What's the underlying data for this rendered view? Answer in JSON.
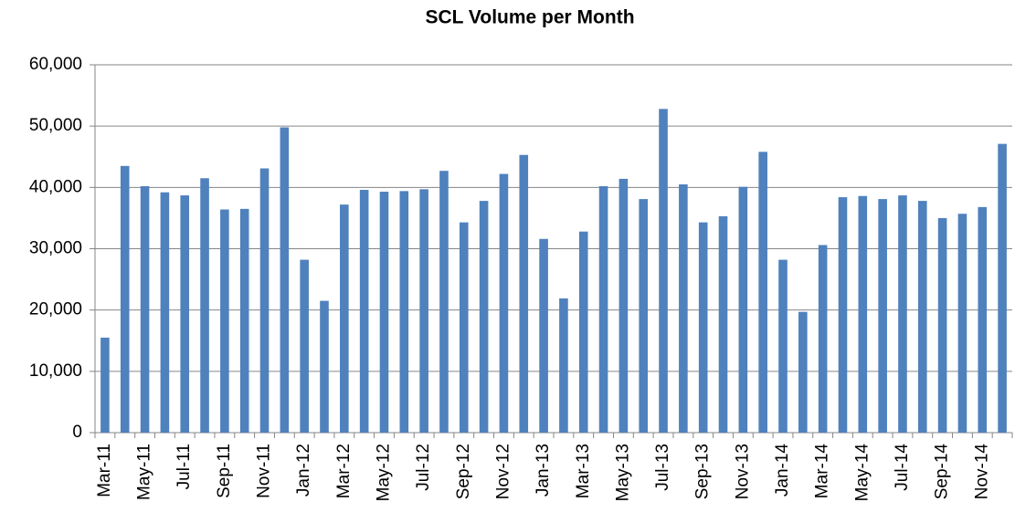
{
  "chart_data": {
    "type": "bar",
    "title": "SCL Volume per Month",
    "categories": [
      "Mar-11",
      null,
      "May-11",
      null,
      "Jul-11",
      null,
      "Sep-11",
      null,
      "Nov-11",
      null,
      "Jan-12",
      null,
      "Mar-12",
      null,
      "May-12",
      null,
      "Jul-12",
      null,
      "Sep-12",
      null,
      "Nov-12",
      null,
      "Jan-13",
      null,
      "Mar-13",
      null,
      "May-13",
      null,
      "Jul-13",
      null,
      "Sep-13",
      null,
      "Nov-13",
      null,
      "Jan-14",
      null,
      "Mar-14",
      null,
      "May-14",
      null,
      "Jul-14",
      null,
      "Sep-14",
      null,
      "Nov-14",
      null
    ],
    "values": [
      15500,
      43500,
      40200,
      39200,
      38700,
      41500,
      36400,
      36500,
      43100,
      49800,
      28200,
      21500,
      37200,
      39600,
      39300,
      39400,
      39700,
      42700,
      34300,
      37800,
      42200,
      45300,
      31600,
      21900,
      32800,
      40200,
      41400,
      38100,
      52800,
      40500,
      34300,
      35300,
      40100,
      45800,
      28200,
      19700,
      30600,
      38400,
      38600,
      38100,
      38700,
      37800,
      35000,
      35700,
      36800,
      47100
    ],
    "color": "#4f81bd",
    "ylim": [
      0,
      60000
    ],
    "yticks": [
      0,
      {
        "value": 10000,
        "label": "10,000"
      },
      {
        "value": 20000,
        "label": "20,000"
      },
      {
        "value": 30000,
        "label": "30,000"
      },
      {
        "value": 40000,
        "label": "40,000"
      },
      {
        "value": 50000,
        "label": "50,000"
      },
      {
        "value": 60000,
        "label": "60,000"
      }
    ],
    "grid": true
  }
}
